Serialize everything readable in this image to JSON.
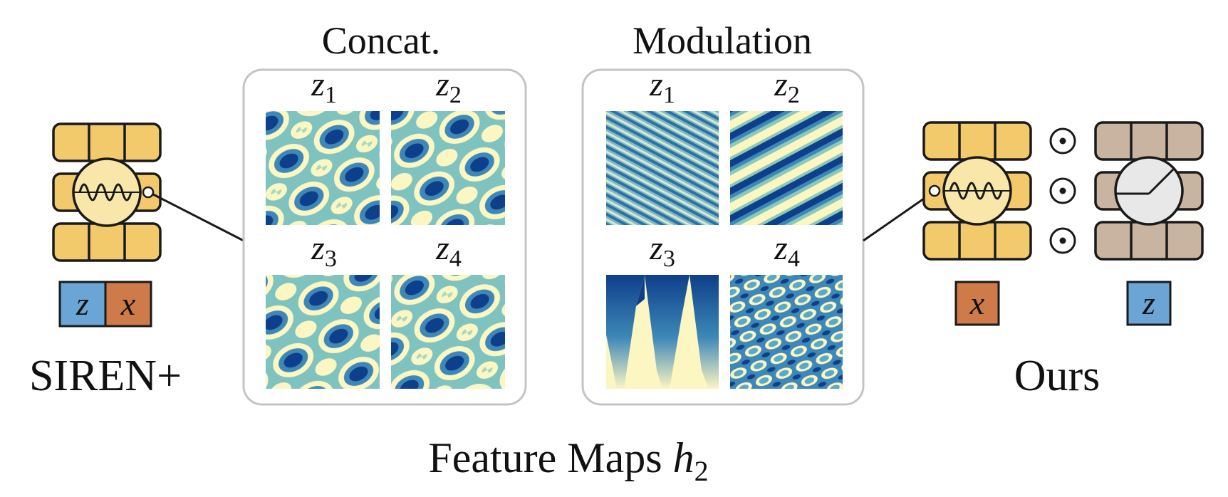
{
  "colors": {
    "cell_yellow": "#f2c96b",
    "cell_tan": "#c8b4a0",
    "sine_circle": "#f8e7a8",
    "gray_circle": "#e8e8e8",
    "z_box": "#6aa5d6",
    "x_box": "#cf7a49",
    "panel_border": "#c4c4c4",
    "map_dark": "#0e3f8a",
    "map_light": "#fbf6c2"
  },
  "left_model": {
    "label": "SIREN+",
    "input_z": "z",
    "input_x": "x",
    "neuron_icon": "sine-wave-icon"
  },
  "panels": [
    {
      "title": "Concat.",
      "maps": [
        {
          "var": "z",
          "sub": "1"
        },
        {
          "var": "z",
          "sub": "2"
        },
        {
          "var": "z",
          "sub": "3"
        },
        {
          "var": "z",
          "sub": "4"
        }
      ]
    },
    {
      "title": "Modulation",
      "maps": [
        {
          "var": "z",
          "sub": "1"
        },
        {
          "var": "z",
          "sub": "2"
        },
        {
          "var": "z",
          "sub": "3"
        },
        {
          "var": "z",
          "sub": "4"
        }
      ]
    }
  ],
  "right_model": {
    "label": "Ours",
    "input_x": "x",
    "input_z": "z",
    "operator": "⊙",
    "neuron_icon": "sine-wave-icon",
    "modulator_icon": "gauge-icon"
  },
  "caption": {
    "text": "Feature Maps ",
    "var": "h",
    "sub": "2"
  }
}
